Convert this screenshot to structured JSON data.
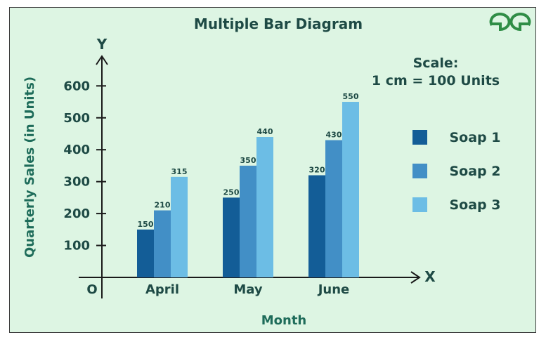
{
  "logo": {
    "text": "GfG",
    "color": "#2f8d46"
  },
  "scale_note": {
    "line1": "Scale:",
    "line2": "1 cm = 100 Units"
  },
  "chart_data": {
    "type": "bar",
    "title": "Multiple Bar Diagram",
    "xlabel": "Month",
    "ylabel": "Quarterly Sales (in Units)",
    "x_axis_letter": "X",
    "y_axis_letter": "Y",
    "origin_label": "O",
    "categories": [
      "April",
      "May",
      "June"
    ],
    "yticks": [
      100,
      200,
      300,
      400,
      500,
      600
    ],
    "ylim": [
      0,
      650
    ],
    "grid": false,
    "legend_position": "right",
    "show_data_labels": true,
    "series": [
      {
        "name": "Soap 1",
        "color": "#135d97",
        "values": [
          150,
          250,
          320
        ]
      },
      {
        "name": "Soap 2",
        "color": "#428fc6",
        "values": [
          210,
          350,
          430
        ]
      },
      {
        "name": "Soap 3",
        "color": "#6cbde5",
        "values": [
          315,
          440,
          550
        ]
      }
    ]
  }
}
